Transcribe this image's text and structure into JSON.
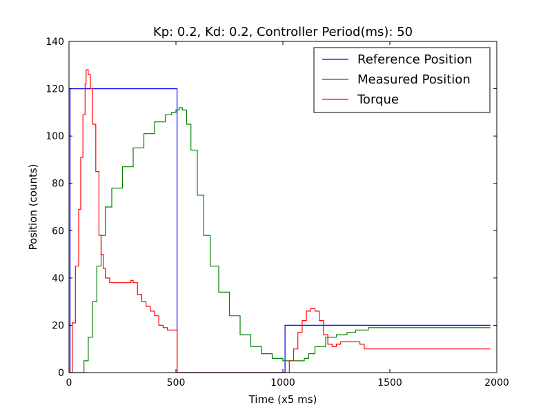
{
  "chart_data": {
    "type": "line",
    "title": "Kp: 0.2, Kd: 0.2, Controller Period(ms): 50",
    "xlabel": "Time (x5 ms)",
    "ylabel": "Position (counts)",
    "xlim": [
      0,
      2000
    ],
    "ylim": [
      0,
      140
    ],
    "xticks": [
      0,
      500,
      1000,
      1500,
      2000
    ],
    "yticks": [
      0,
      20,
      40,
      60,
      80,
      100,
      120,
      140
    ],
    "grid": false,
    "legend": "top-right",
    "series": [
      {
        "name": "Reference Position",
        "color": "#0000ff",
        "step": true,
        "x": [
          0,
          5,
          505,
          1010,
          1970
        ],
        "y": [
          0,
          120,
          0,
          20,
          20
        ]
      },
      {
        "name": "Measured Position",
        "color": "#008000",
        "step": true,
        "x": [
          0,
          50,
          70,
          90,
          110,
          130,
          150,
          170,
          200,
          250,
          300,
          350,
          400,
          450,
          480,
          500,
          515,
          530,
          550,
          570,
          600,
          630,
          660,
          700,
          750,
          800,
          850,
          900,
          950,
          1000,
          1030,
          1060,
          1080,
          1100,
          1120,
          1150,
          1200,
          1250,
          1300,
          1340,
          1400,
          1500,
          1970
        ],
        "y": [
          0,
          0,
          5,
          15,
          30,
          45,
          58,
          70,
          78,
          87,
          95,
          101,
          106,
          109,
          110,
          111,
          112,
          111,
          105,
          94,
          75,
          58,
          45,
          34,
          24,
          16,
          11,
          8,
          6,
          5,
          5,
          5,
          5,
          6,
          8,
          11,
          15,
          16,
          17,
          18,
          19,
          19,
          19
        ]
      },
      {
        "name": "Torque",
        "color": "#ff0000",
        "step": true,
        "x": [
          0,
          15,
          30,
          45,
          55,
          65,
          75,
          80,
          90,
          100,
          110,
          125,
          140,
          150,
          160,
          170,
          190,
          200,
          210,
          230,
          250,
          270,
          290,
          300,
          320,
          340,
          360,
          380,
          400,
          420,
          440,
          460,
          480,
          500,
          505,
          1010,
          1030,
          1050,
          1070,
          1090,
          1110,
          1130,
          1150,
          1170,
          1190,
          1210,
          1230,
          1250,
          1270,
          1300,
          1340,
          1360,
          1380,
          1970
        ],
        "y": [
          0,
          21,
          45,
          69,
          91,
          109,
          122,
          128,
          126,
          120,
          105,
          85,
          58,
          50,
          44,
          40,
          38,
          38,
          38,
          38,
          38,
          38,
          39,
          38,
          33,
          30,
          28,
          26,
          24,
          20,
          19,
          18,
          18,
          18,
          0,
          0,
          5,
          10,
          17,
          22,
          26,
          27,
          26,
          22,
          16,
          12,
          11,
          12,
          13,
          13,
          13,
          12,
          10,
          10
        ]
      }
    ]
  }
}
